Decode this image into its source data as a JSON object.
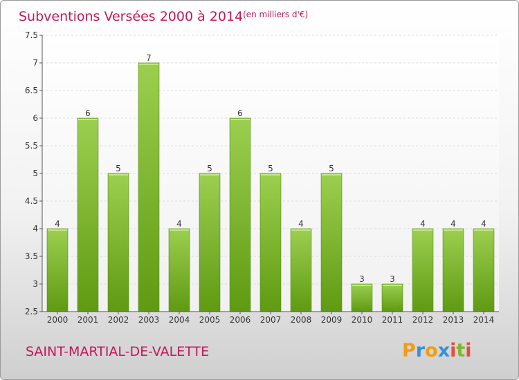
{
  "header": {
    "title": "Subventions Versées 2000 à 2014",
    "unit": "(en milliers d'€)"
  },
  "footer": {
    "commune": "SAINT-MARTIAL-DE-VALETTE",
    "logo_letters": [
      "P",
      "r",
      "o",
      "x",
      "i",
      "t",
      "i"
    ],
    "logo_colors": [
      "#f39c12",
      "#3a8fd8",
      "#f39c12",
      "#3a8fd8",
      "#e74c3c",
      "#7cb82f",
      "#e74c3c"
    ]
  },
  "chart_data": {
    "type": "bar",
    "categories": [
      "2000",
      "2001",
      "2002",
      "2003",
      "2004",
      "2005",
      "2006",
      "2007",
      "2008",
      "2009",
      "2010",
      "2011",
      "2012",
      "2013",
      "2014"
    ],
    "values": [
      4,
      6,
      5,
      7,
      4,
      5,
      6,
      5,
      4,
      5,
      3,
      3,
      4,
      4,
      4
    ],
    "data_labels": [
      "4",
      "6",
      "5",
      "7",
      "4",
      "5",
      "6",
      "5",
      "4",
      "5",
      "3",
      "3",
      "4",
      "4",
      "4"
    ],
    "yticks": [
      "2.5",
      "3",
      "3.5",
      "4",
      "4.5",
      "5",
      "5.5",
      "6",
      "6.5",
      "7",
      "7.5"
    ],
    "ylim": [
      2.5,
      7.5
    ],
    "grid": true,
    "bar_color_top": "#9ccf4f",
    "bar_color_bottom": "#5f9a12"
  }
}
